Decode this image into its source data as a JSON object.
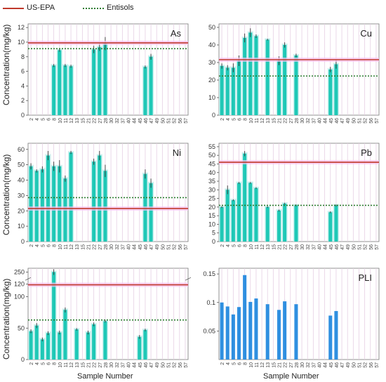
{
  "legend": {
    "epa_label": "US-EPA",
    "entisols_label": "Entisols",
    "epa_color": "#c0392b",
    "entisols_color": "#2e7d32"
  },
  "axis_texts": {
    "ylabel": "Concentration(mg/kg)",
    "xlabel": "Sample Number"
  },
  "chart_data": [
    {
      "type": "bar",
      "title": "As",
      "categories": [
        "2",
        "4",
        "5",
        "6",
        "8",
        "10",
        "11",
        "12",
        "13",
        "15",
        "21",
        "22",
        "27",
        "28",
        "30",
        "32",
        "37",
        "40",
        "44",
        "45",
        "46",
        "47",
        "49",
        "50",
        "51",
        "52",
        "56",
        "57"
      ],
      "values": [
        null,
        null,
        null,
        null,
        6.8,
        8.9,
        6.8,
        6.7,
        null,
        null,
        null,
        9.0,
        9.3,
        9.8,
        null,
        null,
        null,
        null,
        null,
        null,
        6.6,
        8.0,
        null,
        null,
        null,
        null,
        null,
        null
      ],
      "errors": [
        null,
        null,
        null,
        null,
        0.2,
        0.2,
        0.2,
        0.2,
        null,
        null,
        null,
        0.5,
        0.5,
        0.9,
        null,
        null,
        null,
        null,
        null,
        null,
        0.2,
        0.4,
        null,
        null,
        null,
        null,
        null,
        null
      ],
      "yticks": [
        0,
        2,
        4,
        6,
        8,
        10,
        12
      ],
      "ylim": [
        0,
        12.5
      ],
      "epa": 9.9,
      "entisols": 9.1
    },
    {
      "type": "bar",
      "title": "Cu",
      "categories": [
        "2",
        "4",
        "5",
        "6",
        "8",
        "10",
        "11",
        "12",
        "13",
        "15",
        "21",
        "22",
        "27",
        "28",
        "30",
        "32",
        "37",
        "40",
        "44",
        "45",
        "46",
        "47",
        "49",
        "50",
        "51",
        "52",
        "56",
        "57"
      ],
      "values": [
        28,
        27,
        27,
        31,
        44,
        47,
        45,
        null,
        43,
        null,
        31,
        40,
        null,
        34,
        null,
        null,
        null,
        null,
        null,
        26,
        29,
        null,
        null,
        null,
        null,
        null,
        null,
        null
      ],
      "errors": [
        1.5,
        1.5,
        2.5,
        3.0,
        2.5,
        2.5,
        1.0,
        null,
        0.5,
        null,
        2.5,
        1.5,
        null,
        1.0,
        null,
        null,
        null,
        null,
        null,
        1.5,
        2.5,
        null,
        null,
        null,
        null,
        null,
        null,
        null
      ],
      "yticks": [
        0,
        10,
        20,
        30,
        40,
        50
      ],
      "ylim": [
        0,
        52
      ],
      "epa": 31.6,
      "entisols": 22.3
    },
    {
      "type": "bar",
      "title": "Ni",
      "categories": [
        "2",
        "4",
        "5",
        "6",
        "8",
        "10",
        "11",
        "12",
        "13",
        "15",
        "21",
        "22",
        "27",
        "28",
        "30",
        "32",
        "37",
        "40",
        "44",
        "45",
        "46",
        "47",
        "49",
        "50",
        "51",
        "52",
        "56",
        "57"
      ],
      "values": [
        49,
        46,
        47,
        56,
        49,
        49,
        41,
        58,
        null,
        null,
        null,
        52,
        56,
        46,
        null,
        null,
        null,
        null,
        null,
        null,
        44,
        38,
        null,
        null,
        null,
        null,
        null,
        null
      ],
      "errors": [
        2.0,
        1.0,
        2.0,
        3.0,
        3.0,
        4.0,
        2.0,
        1.0,
        null,
        null,
        null,
        2.0,
        3.0,
        4.0,
        null,
        null,
        null,
        null,
        null,
        null,
        3.0,
        3.0,
        null,
        null,
        null,
        null,
        null,
        null
      ],
      "yticks": [
        0,
        10,
        20,
        30,
        40,
        50,
        60
      ],
      "ylim": [
        0,
        64
      ],
      "epa": 21.5,
      "entisols": 28.6
    },
    {
      "type": "bar",
      "title": "Pb",
      "categories": [
        "2",
        "4",
        "5",
        "6",
        "8",
        "10",
        "11",
        "12",
        "13",
        "15",
        "21",
        "22",
        "27",
        "28",
        "30",
        "32",
        "37",
        "40",
        "44",
        "45",
        "46",
        "47",
        "49",
        "50",
        "51",
        "52",
        "56",
        "57"
      ],
      "values": [
        20,
        30,
        24,
        34,
        51,
        34,
        31,
        null,
        20,
        null,
        18,
        22,
        null,
        21,
        null,
        null,
        null,
        null,
        null,
        17,
        21,
        null,
        null,
        null,
        null,
        null,
        null,
        null
      ],
      "errors": [
        0.5,
        2.5,
        0.5,
        0.5,
        1.5,
        0.5,
        0.5,
        null,
        0.5,
        null,
        0.5,
        0.5,
        null,
        0.5,
        null,
        null,
        null,
        null,
        null,
        0.5,
        0.5,
        null,
        null,
        null,
        null,
        null,
        null,
        null
      ],
      "yticks": [
        0,
        5,
        10,
        15,
        20,
        25,
        30,
        35,
        40,
        45,
        50,
        55
      ],
      "ylim": [
        0,
        57
      ],
      "epa": 46,
      "entisols": 21
    },
    {
      "type": "bar",
      "title": "",
      "categories": [
        "2",
        "4",
        "5",
        "6",
        "8",
        "10",
        "11",
        "12",
        "13",
        "15",
        "21",
        "22",
        "27",
        "28",
        "30",
        "32",
        "37",
        "40",
        "44",
        "45",
        "46",
        "47",
        "49",
        "50",
        "51",
        "52",
        "56",
        "57"
      ],
      "values": [
        45,
        54,
        32,
        42,
        250,
        43,
        79,
        null,
        48,
        null,
        43,
        56,
        null,
        61,
        null,
        null,
        null,
        null,
        null,
        36,
        47,
        null,
        null,
        null,
        null,
        null,
        null,
        null
      ],
      "errors": [
        3,
        4,
        3,
        3,
        6,
        3,
        4,
        null,
        2,
        null,
        3,
        3,
        null,
        2,
        null,
        null,
        null,
        null,
        null,
        3,
        2,
        null,
        null,
        null,
        null,
        null,
        null,
        null
      ],
      "yticks": [
        0,
        50,
        100,
        120,
        250
      ],
      "ylim": [
        0,
        255
      ],
      "broken_axis": true,
      "epa": 119,
      "entisols": 63
    },
    {
      "type": "bar",
      "title": "PLI",
      "categories": [
        "2",
        "4",
        "5",
        "6",
        "8",
        "10",
        "11",
        "12",
        "13",
        "15",
        "21",
        "22",
        "27",
        "28",
        "30",
        "32",
        "37",
        "40",
        "44",
        "45",
        "46",
        "47",
        "49",
        "50",
        "51",
        "52",
        "56",
        "57"
      ],
      "values": [
        0.1,
        0.093,
        0.079,
        0.092,
        0.148,
        0.101,
        0.107,
        null,
        0.097,
        null,
        0.087,
        0.102,
        null,
        0.097,
        null,
        null,
        null,
        null,
        null,
        0.077,
        0.085,
        null,
        null,
        null,
        null,
        null,
        null,
        null
      ],
      "yticks": [
        0.05,
        0.1,
        0.15
      ],
      "ylim": [
        0,
        0.16
      ],
      "bar_color": "#2f8fe0"
    }
  ]
}
